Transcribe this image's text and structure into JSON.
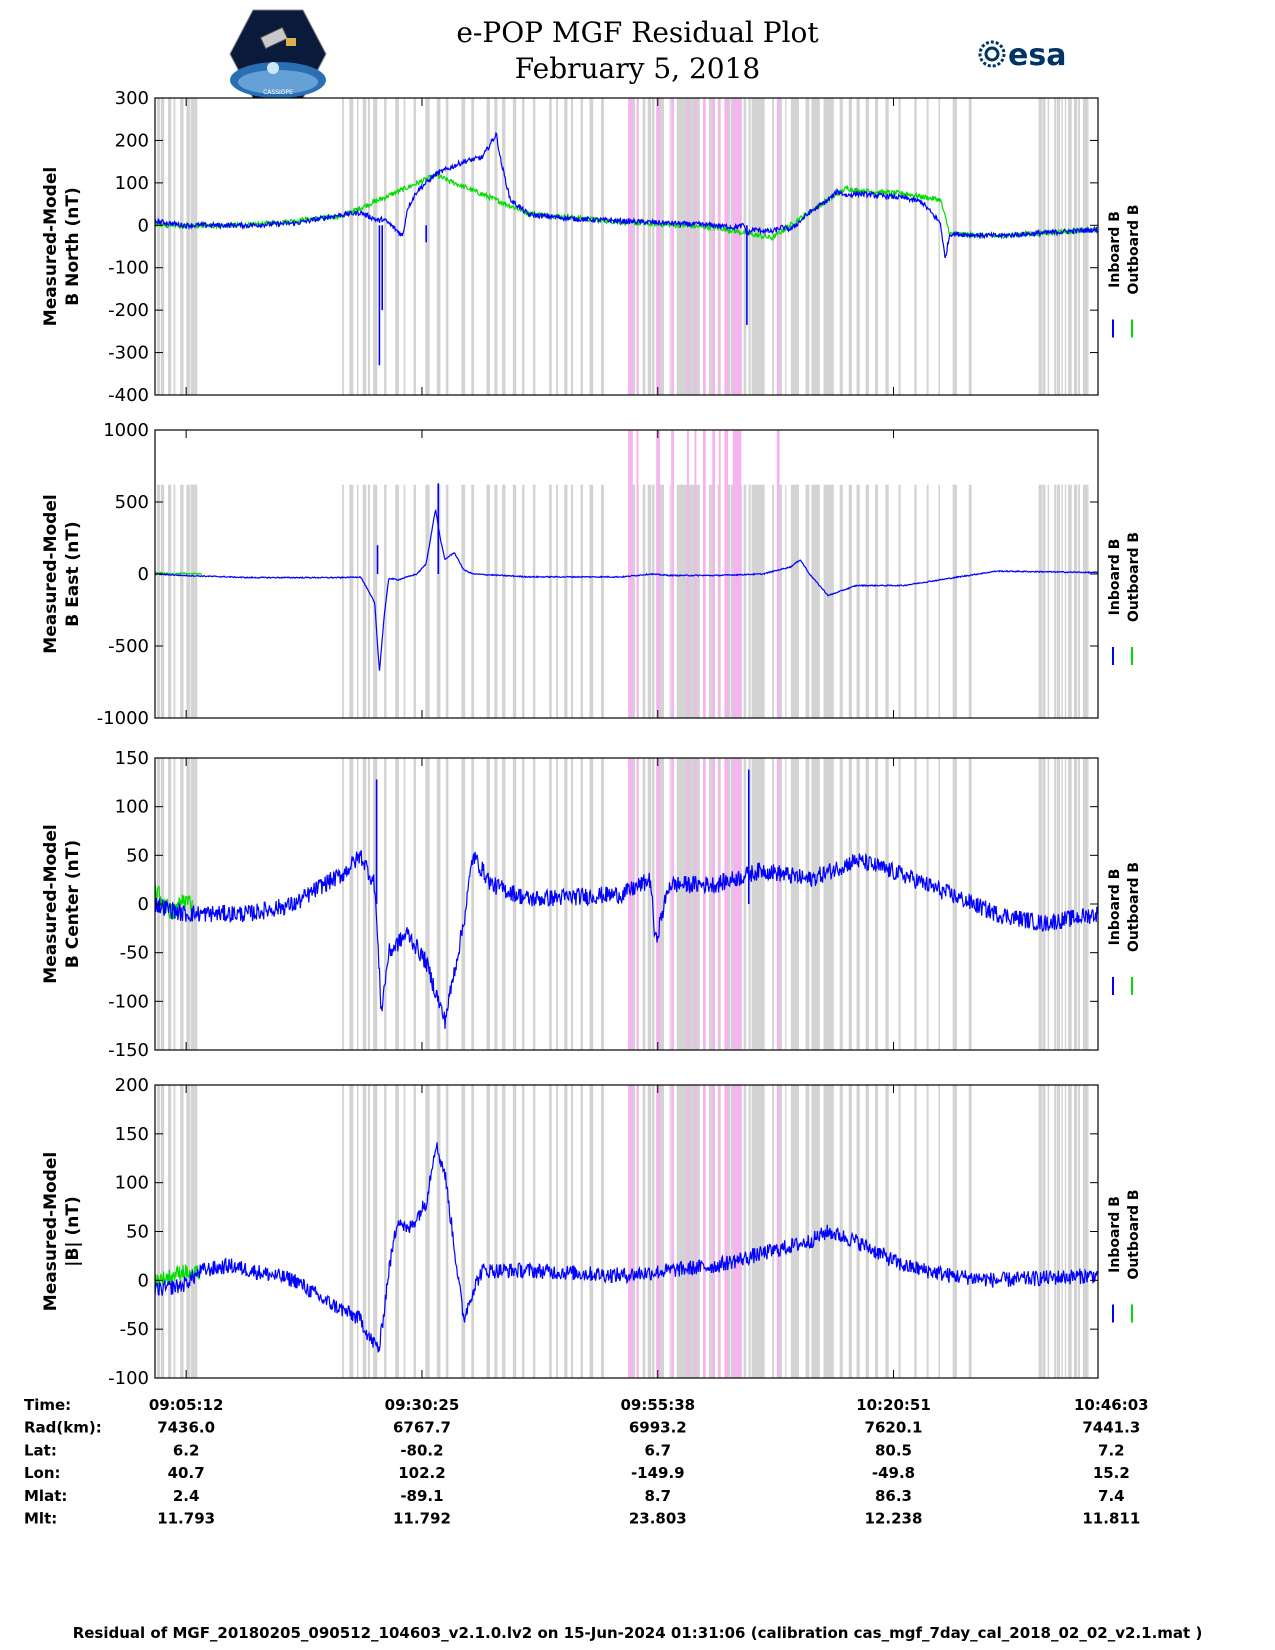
{
  "header": {
    "title": "e-POP MGF Residual Plot",
    "date": "February 5, 2018",
    "logo_left": "cassiope-logo",
    "logo_left_text": "CASSIOPE",
    "logo_right": "esa-logo",
    "logo_right_text": "esa"
  },
  "legend": {
    "inboard": "Inboard B",
    "outboard": "Outboard B"
  },
  "colors": {
    "inboard": "#0000ff",
    "outboard": "#00dd00",
    "gap_gray": "#d3d3d3",
    "gap_pink": "#f5b3f0"
  },
  "time_axis": {
    "tick_labels": [
      "09:05:12",
      "09:30:25",
      "09:55:38",
      "10:20:51",
      "10:46:03"
    ],
    "range_minutes": [
      0,
      100.85
    ],
    "tick_minutes": [
      3.33,
      28.55,
      53.77,
      78.98,
      104.2
    ]
  },
  "ephemeris": {
    "rows": [
      {
        "label": "Time:",
        "values": [
          "09:05:12",
          "09:30:25",
          "09:55:38",
          "10:20:51",
          "10:46:03"
        ]
      },
      {
        "label": "Rad(km):",
        "values": [
          "7436.0",
          "6767.7",
          "6993.2",
          "7620.1",
          "7441.3"
        ]
      },
      {
        "label": "Lat:",
        "values": [
          "6.2",
          "-80.2",
          "6.7",
          "80.5",
          "7.2"
        ]
      },
      {
        "label": "Lon:",
        "values": [
          "40.7",
          "102.2",
          "-149.9",
          "-49.8",
          "15.2"
        ]
      },
      {
        "label": "Mlat:",
        "values": [
          "2.4",
          "-89.1",
          "8.7",
          "86.3",
          "7.4"
        ]
      },
      {
        "label": "Mlt:",
        "values": [
          "11.793",
          "11.792",
          "23.803",
          "12.238",
          "11.811"
        ]
      }
    ]
  },
  "footer": "Residual of MGF_20180205_090512_104603_v2.1.0.lv2 on 15-Jun-2024 01:31:06 (calibration cas_mgf_7day_cal_2018_02_02_v2.1.mat )",
  "chart_data": [
    {
      "type": "line",
      "ylabel_line1": "Measured-Model",
      "ylabel_line2": "B North (nT)",
      "ylim": [
        -400,
        300
      ],
      "yticks": [
        300,
        200,
        100,
        0,
        -100,
        -200,
        -300,
        -400
      ],
      "ytick_labels": [
        "300",
        "200",
        "100",
        "0",
        "-100",
        "-200",
        "-300",
        "-400"
      ],
      "gap_top": 300,
      "series": [
        {
          "name": "Inboard B",
          "noise": 6,
          "x": [
            0,
            3,
            10,
            15,
            20,
            22,
            23.5,
            24,
            24.3,
            25,
            26.5,
            27,
            28,
            30,
            33,
            35,
            36.5,
            37,
            38,
            40,
            45,
            55,
            60,
            62,
            63,
            63.3,
            64,
            66,
            67,
            68,
            70,
            72,
            73,
            74,
            75,
            80,
            82,
            84,
            84.5,
            85,
            90,
            100.85
          ],
          "y": [
            10,
            0,
            0,
            5,
            25,
            30,
            15,
            10,
            15,
            5,
            -25,
            40,
            80,
            120,
            150,
            160,
            215,
            150,
            60,
            25,
            15,
            5,
            0,
            -5,
            0,
            -20,
            -10,
            -15,
            -5,
            -10,
            30,
            60,
            80,
            70,
            75,
            65,
            55,
            5,
            -80,
            -20,
            -25,
            -10
          ]
        },
        {
          "name": "Outboard B",
          "noise": 6,
          "x": [
            0,
            3,
            10,
            20,
            30,
            40,
            50,
            60,
            63,
            64,
            66,
            70,
            74,
            75,
            80,
            84,
            85,
            90,
            100.85
          ],
          "y": [
            2,
            -2,
            0,
            22,
            118,
            28,
            7,
            -5,
            -18,
            -22,
            -30,
            32,
            88,
            82,
            75,
            60,
            -20,
            -25,
            -10
          ]
        }
      ],
      "spikes": [
        {
          "x": 24.0,
          "y": -330
        },
        {
          "x": 24.3,
          "y": -200
        },
        {
          "x": 29.0,
          "y": -40
        },
        {
          "x": 63.3,
          "y": -235
        }
      ]
    },
    {
      "type": "line",
      "ylabel_line1": "Measured-Model",
      "ylabel_line2": "B East (nT)",
      "ylim": [
        -1000,
        1000
      ],
      "yticks": [
        1000,
        500,
        0,
        -500,
        -1000
      ],
      "ytick_labels": [
        "1000",
        "500",
        "0",
        "-500",
        "-1000"
      ],
      "gap_top": 620,
      "series": [
        {
          "name": "Inboard B",
          "noise": 4,
          "x": [
            0,
            3,
            10,
            20,
            22,
            23.5,
            24,
            24.5,
            25,
            26,
            28,
            29,
            30,
            30.5,
            31,
            32,
            33,
            34,
            40,
            50,
            53,
            55,
            60,
            65,
            68,
            69,
            70,
            72,
            75,
            80,
            90,
            100.85
          ],
          "y": [
            0,
            -10,
            -25,
            -25,
            -20,
            -200,
            -680,
            -300,
            -30,
            -40,
            0,
            70,
            450,
            250,
            100,
            150,
            30,
            0,
            -20,
            -20,
            0,
            -10,
            -10,
            0,
            50,
            100,
            0,
            -150,
            -80,
            -80,
            20,
            10
          ]
        },
        {
          "name": "Outboard B",
          "noise": 4,
          "x": [
            0,
            2,
            3,
            5
          ],
          "y": [
            10,
            0,
            5,
            0
          ]
        }
      ],
      "spikes": [
        {
          "x": 30.3,
          "y": 630
        },
        {
          "x": 23.8,
          "y": 200
        }
      ]
    },
    {
      "type": "line",
      "ylabel_line1": "Measured-Model",
      "ylabel_line2": "B Center (nT)",
      "ylim": [
        -150,
        150
      ],
      "yticks": [
        150,
        100,
        50,
        0,
        -50,
        -100,
        -150
      ],
      "ytick_labels": [
        "150",
        "100",
        "50",
        "0",
        "-50",
        "-100",
        "-150"
      ],
      "gap_top": 150,
      "series": [
        {
          "name": "Inboard B",
          "noise": 9,
          "x": [
            0,
            3,
            10,
            15,
            18,
            20,
            22,
            23.5,
            24.2,
            25,
            27,
            29,
            31,
            33,
            34,
            36,
            40,
            50,
            53,
            53.5,
            55,
            60,
            65,
            70,
            75,
            80,
            85,
            90,
            95,
            100.85
          ],
          "y": [
            0,
            -10,
            -10,
            0,
            20,
            30,
            50,
            20,
            -110,
            -50,
            -30,
            -60,
            -120,
            -20,
            50,
            20,
            5,
            10,
            25,
            -40,
            20,
            20,
            35,
            25,
            45,
            30,
            10,
            -10,
            -20,
            -10
          ]
        },
        {
          "name": "Outboard B",
          "noise": 10,
          "x": [
            0,
            1,
            2,
            3,
            4
          ],
          "y": [
            15,
            0,
            -10,
            5,
            0
          ]
        }
      ],
      "spikes": [
        {
          "x": 23.7,
          "y": 128
        },
        {
          "x": 63.5,
          "y": 138
        }
      ]
    },
    {
      "type": "line",
      "ylabel_line1": "Measured-Model",
      "ylabel_line2": "|B| (nT)",
      "ylim": [
        -100,
        200
      ],
      "yticks": [
        200,
        150,
        100,
        50,
        0,
        -50,
        -100
      ],
      "ytick_labels": [
        "200",
        "150",
        "100",
        "50",
        "0",
        "-50",
        "-100"
      ],
      "gap_top": 200,
      "series": [
        {
          "name": "Inboard B",
          "noise": 8,
          "x": [
            0,
            3,
            5,
            8,
            15,
            18,
            22,
            23,
            24,
            25,
            26,
            27,
            29,
            30,
            31,
            33,
            34,
            35,
            40,
            50,
            60,
            70,
            72,
            75,
            80,
            85,
            90,
            100.85
          ],
          "y": [
            -10,
            -5,
            10,
            15,
            0,
            -20,
            -40,
            -60,
            -70,
            10,
            65,
            50,
            80,
            140,
            110,
            -40,
            -10,
            10,
            10,
            5,
            15,
            40,
            50,
            40,
            15,
            5,
            0,
            5
          ]
        },
        {
          "name": "Outboard B",
          "noise": 8,
          "x": [
            0,
            2,
            3,
            4,
            5
          ],
          "y": [
            0,
            5,
            10,
            5,
            10
          ]
        }
      ],
      "spikes": []
    }
  ]
}
